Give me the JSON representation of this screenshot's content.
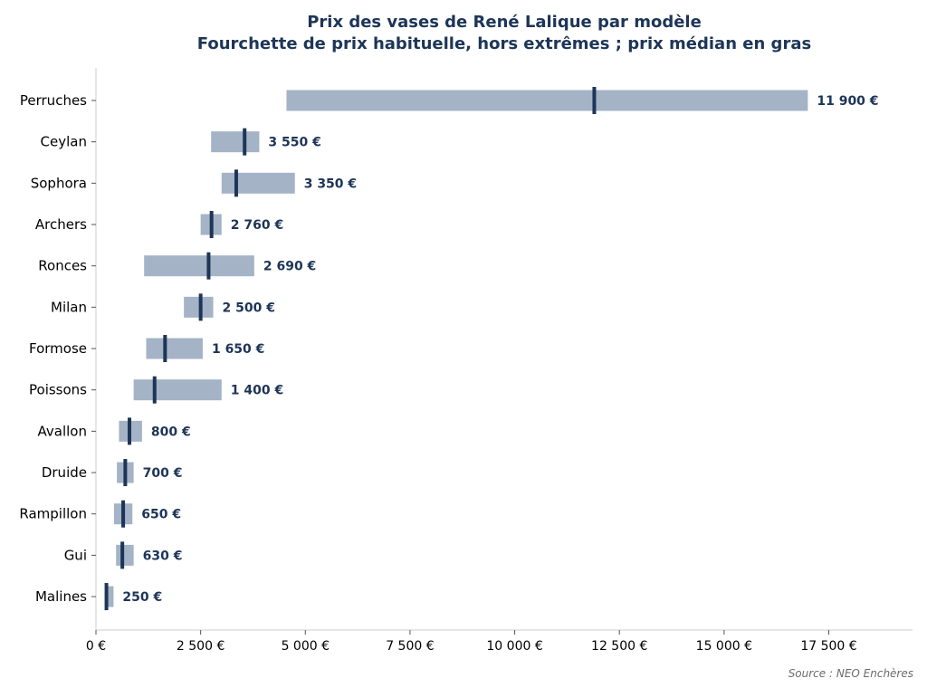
{
  "chart_data": {
    "type": "bar",
    "title": "Prix des vases de René Lalique par modèle",
    "subtitle": "Fourchette de prix habituelle, hors extrêmes ; prix médian en gras",
    "xlabel": "",
    "ylabel": "",
    "xlim": [
      0,
      19500
    ],
    "x_ticks": [
      0,
      2500,
      5000,
      7500,
      10000,
      12500,
      15000,
      17500
    ],
    "x_tick_labels": [
      "0 €",
      "2 500 €",
      "5 000 €",
      "7 500 €",
      "10 000 €",
      "12 500 €",
      "15 000 €",
      "17 500 €"
    ],
    "grid": false,
    "categories": [
      "Perruches",
      "Ceylan",
      "Sophora",
      "Archers",
      "Ronces",
      "Milan",
      "Formose",
      "Poissons",
      "Avallon",
      "Druide",
      "Rampillon",
      "Gui",
      "Malines"
    ],
    "series": [
      {
        "low": [
          4550,
          2750,
          3000,
          2500,
          1150,
          2100,
          1200,
          900,
          550,
          500,
          430,
          480,
          220
        ]
      },
      {
        "high": [
          17000,
          3900,
          4750,
          3000,
          3780,
          2800,
          2550,
          3000,
          1100,
          900,
          870,
          900,
          420
        ]
      },
      {
        "median": [
          11900,
          3550,
          3350,
          2760,
          2690,
          2500,
          1650,
          1400,
          800,
          700,
          650,
          630,
          250
        ]
      }
    ],
    "median_labels": [
      "11 900 €",
      "3 550 €",
      "3 350 €",
      "2 760 €",
      "2 690 €",
      "2 500 €",
      "1 650 €",
      "1 400 €",
      "800 €",
      "700 €",
      "650 €",
      "630 €",
      "250 €"
    ],
    "colors": {
      "range": "#a4b3c6",
      "median": "#1d3557",
      "label": "#1d3557",
      "axis": "#cccccc"
    }
  },
  "source": "Source : NEO Enchères"
}
